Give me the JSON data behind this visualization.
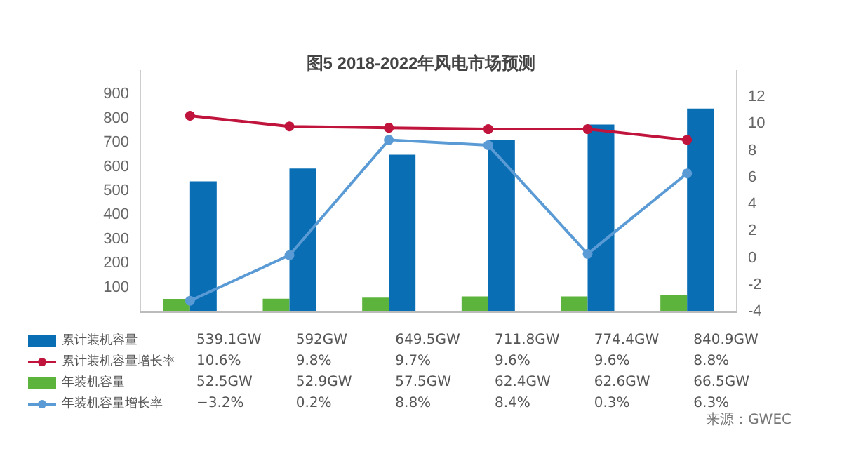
{
  "chart_data": {
    "type": "bar",
    "title": "图5 2018-2022年风电市场预测",
    "categories": [
      null,
      null,
      null,
      null,
      null,
      null
    ],
    "series": [
      {
        "name": "累计装机容量",
        "color": "#0a6eb4",
        "values": [
          539.1,
          592,
          649.5,
          711.8,
          774.4,
          840.9
        ],
        "value_labels": [
          "539.1GW",
          "592GW",
          "649.5GW",
          "711.8GW",
          "774.4GW",
          "840.9GW"
        ]
      },
      {
        "name": "累计装机容量增长率",
        "type": "line",
        "axis": "y2",
        "color": "#c0143c",
        "values": [
          10.6,
          9.8,
          9.7,
          9.6,
          9.6,
          8.8
        ],
        "value_labels": [
          "10.6%",
          "9.8%",
          "9.7%",
          "9.6%",
          "9.6%",
          "8.8%"
        ]
      },
      {
        "name": "年装机容量",
        "color": "#5db43c",
        "values": [
          52.5,
          52.9,
          57.5,
          62.4,
          62.6,
          66.5
        ],
        "value_labels": [
          "52.5GW",
          "52.9GW",
          "57.5GW",
          "62.4GW",
          "62.6GW",
          "66.5GW"
        ]
      },
      {
        "name": "年装机容量增长率",
        "type": "line",
        "axis": "y2",
        "color": "#5b9bd5",
        "values": [
          -3.2,
          0.2,
          8.8,
          8.4,
          0.3,
          6.3
        ],
        "value_labels": [
          "−3.2%",
          "0.2%",
          "8.8%",
          "8.4%",
          "0.3%",
          "6.3%"
        ]
      }
    ],
    "ylim": [
      0,
      1000
    ],
    "yticks": [
      100,
      200,
      300,
      400,
      500,
      600,
      700,
      800,
      900
    ],
    "y2lim": [
      -4,
      14
    ],
    "y2ticks": [
      -4,
      -2,
      0,
      2,
      4,
      6,
      8,
      10,
      12
    ],
    "marker": "circle",
    "grid": false,
    "legend": "bottom",
    "annotations": [
      "来源：GWEC"
    ]
  }
}
